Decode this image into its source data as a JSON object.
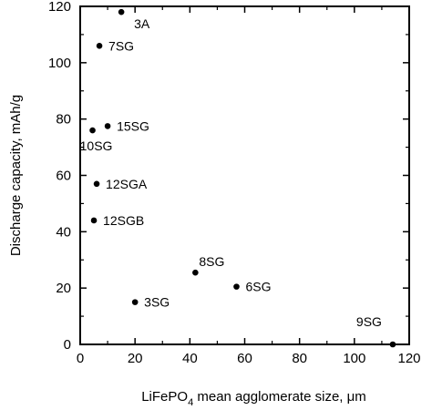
{
  "chart_data": {
    "type": "scatter",
    "title": "",
    "xlabel_main": "LiFePO",
    "xlabel_sub": "4",
    "xlabel_rest": " mean agglomerate size, μm",
    "ylabel": "Discharge capacity, mAh/g",
    "xlim": [
      0,
      120
    ],
    "ylim": [
      0,
      120
    ],
    "xticks": [
      0,
      20,
      40,
      60,
      80,
      100,
      120
    ],
    "yticks": [
      0,
      20,
      40,
      60,
      80,
      100,
      120
    ],
    "grid": false,
    "marker_color": "#000000",
    "points": [
      {
        "label": "3A",
        "x": 15,
        "y": 118,
        "label_pos": "below-right"
      },
      {
        "label": "7SG",
        "x": 7,
        "y": 106,
        "label_pos": "right"
      },
      {
        "label": "15SG",
        "x": 10,
        "y": 77.5,
        "label_pos": "right"
      },
      {
        "label": "10SG",
        "x": 4.5,
        "y": 76,
        "label_pos": "below"
      },
      {
        "label": "12SGA",
        "x": 6,
        "y": 57,
        "label_pos": "right"
      },
      {
        "label": "12SGB",
        "x": 5,
        "y": 44,
        "label_pos": "right"
      },
      {
        "label": "8SG",
        "x": 42,
        "y": 25.5,
        "label_pos": "above-right"
      },
      {
        "label": "6SG",
        "x": 57,
        "y": 20.5,
        "label_pos": "right"
      },
      {
        "label": "3SG",
        "x": 20,
        "y": 15,
        "label_pos": "right"
      },
      {
        "label": "9SG",
        "x": 114,
        "y": 0,
        "label_pos": "above-left"
      }
    ]
  }
}
